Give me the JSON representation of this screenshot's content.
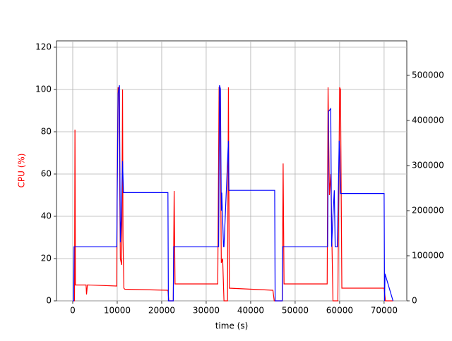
{
  "chart_data": {
    "type": "line",
    "xlabel": "time (s)",
    "ylabel": "CPU (%)",
    "ylabel_color": "#ff0000",
    "xlim": [
      -3650,
      75100
    ],
    "xticks": [
      0,
      10000,
      20000,
      30000,
      40000,
      50000,
      60000,
      70000
    ],
    "ylim": [
      0,
      123
    ],
    "yticks": [
      0,
      20,
      40,
      60,
      80,
      100,
      120
    ],
    "y2lim": [
      0,
      576500
    ],
    "y2ticks": [
      0,
      100000,
      200000,
      300000,
      400000,
      500000
    ],
    "grid": true,
    "series": [
      {
        "color": "#ff0000",
        "axis": "y",
        "x": [
          0,
          400,
          500,
          600,
          700,
          3000,
          3100,
          3300,
          3500,
          9900,
          10000,
          10200,
          10400,
          10700,
          11000,
          11200,
          11300,
          11500,
          11700,
          21400,
          21600,
          22600,
          22800,
          23000,
          32600,
          32900,
          33100,
          33400,
          33700,
          34000,
          34800,
          35000,
          35200,
          45000,
          45300,
          47100,
          47300,
          47500,
          57200,
          57400,
          57700,
          58000,
          58500,
          59000,
          59600,
          60000,
          60200,
          60500,
          70000,
          70300,
          72000
        ],
        "values": [
          0,
          0,
          81,
          7.5,
          7.5,
          7.5,
          3,
          7.5,
          7.5,
          7,
          60,
          101,
          100,
          20,
          17,
          100,
          29,
          6,
          5.5,
          5,
          0,
          0,
          52,
          8,
          8,
          101,
          101,
          18,
          20,
          0,
          0,
          101,
          6,
          5,
          0,
          0,
          65,
          8,
          8,
          101,
          50,
          60,
          0,
          0,
          0,
          101,
          100,
          6,
          6,
          0,
          0
        ]
      },
      {
        "color": "#0000ff",
        "axis": "y2",
        "x": [
          0,
          200,
          300,
          9900,
          10200,
          10500,
          10700,
          10900,
          11200,
          11400,
          21400,
          21500,
          22600,
          22700,
          32800,
          33000,
          33200,
          33400,
          33500,
          33900,
          34000,
          35000,
          35100,
          45400,
          45500,
          47100,
          47200,
          57300,
          57500,
          58000,
          58200,
          58500,
          58800,
          59000,
          59500,
          59900,
          60000,
          60200,
          70000,
          70100,
          70200,
          72000
        ],
        "values": [
          0,
          0,
          120000,
          120000,
          460000,
          478000,
          130000,
          180000,
          310000,
          240000,
          240000,
          0,
          0,
          120000,
          120000,
          478000,
          470000,
          200000,
          240000,
          120000,
          120000,
          355000,
          245000,
          245000,
          0,
          0,
          120000,
          120000,
          420000,
          426000,
          120000,
          190000,
          245000,
          120000,
          120000,
          355000,
          330000,
          238000,
          238000,
          0,
          60000,
          0
        ]
      }
    ]
  }
}
